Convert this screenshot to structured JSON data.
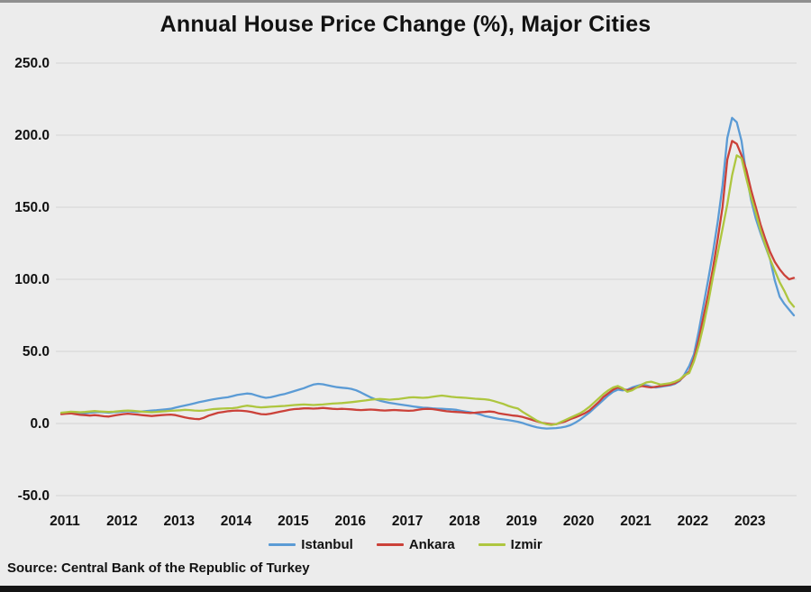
{
  "page": {
    "background_color": "#ececec",
    "top_bar_color": "#8f8f8f",
    "bottom_bar_color": "#141414"
  },
  "chart": {
    "title": "Annual House Price Change (%), Major Cities",
    "source": "Source: Central Bank of the Republic of Turkey",
    "legend": [
      {
        "label": "Istanbul",
        "color": "#5b9bd5"
      },
      {
        "label": "Ankara",
        "color": "#cb4139"
      },
      {
        "label": "Izmir",
        "color": "#aec63f"
      }
    ]
  },
  "chart_data": {
    "type": "line",
    "title": "Annual House Price Change (%), Major Cities",
    "source": "Source: Central Bank of the Republic of Turkey",
    "x_frequency": "monthly",
    "x_start": "2011-01",
    "x_end": "2023-11",
    "n_points": 155,
    "x_tick_labels": [
      "2011",
      "2012",
      "2013",
      "2014",
      "2015",
      "2016",
      "2017",
      "2018",
      "2019",
      "2020",
      "2021",
      "2022",
      "2023"
    ],
    "y_tick_values": [
      250,
      200,
      150,
      100,
      50,
      0,
      -50
    ],
    "y_tick_labels": [
      "250.0",
      "200.0",
      "150.0",
      "100.0",
      "50.0",
      "0.0",
      "-50.0"
    ],
    "ylim": [
      -50,
      250
    ],
    "grid": "horizontal",
    "gridline_color": "#d9d9d9",
    "legend_position": "bottom",
    "series": [
      {
        "name": "Istanbul",
        "color": "#5b9bd5",
        "values": [
          7.0,
          7.2,
          7.5,
          7.3,
          7.0,
          7.2,
          7.5,
          7.8,
          8.0,
          7.8,
          7.5,
          7.8,
          8.0,
          8.3,
          8.5,
          8.2,
          8.0,
          8.3,
          8.6,
          9.0,
          9.2,
          9.5,
          9.8,
          10.2,
          11.0,
          11.8,
          12.5,
          13.2,
          14.0,
          14.8,
          15.5,
          16.2,
          16.8,
          17.3,
          17.8,
          18.2,
          19.0,
          19.8,
          20.3,
          20.8,
          20.5,
          19.5,
          18.5,
          17.8,
          18.2,
          19.0,
          19.8,
          20.5,
          21.5,
          22.5,
          23.5,
          24.5,
          25.8,
          27.0,
          27.5,
          27.2,
          26.5,
          25.8,
          25.2,
          24.8,
          24.5,
          24.0,
          23.0,
          21.5,
          19.8,
          18.2,
          16.8,
          15.8,
          15.0,
          14.3,
          13.8,
          13.3,
          12.8,
          12.3,
          11.8,
          11.4,
          11.0,
          10.8,
          10.5,
          10.3,
          10.2,
          10.0,
          9.8,
          9.5,
          8.8,
          8.3,
          7.8,
          7.2,
          6.3,
          5.2,
          4.5,
          3.8,
          3.2,
          2.8,
          2.3,
          1.8,
          1.2,
          0.3,
          -0.8,
          -1.8,
          -2.6,
          -3.2,
          -3.5,
          -3.4,
          -3.2,
          -2.8,
          -2.2,
          -1.2,
          0.5,
          2.5,
          5.0,
          7.5,
          10.5,
          13.5,
          16.5,
          19.5,
          22.0,
          23.5,
          23.0,
          23.5,
          25.0,
          26.0,
          27.0,
          26.5,
          25.5,
          25.0,
          25.5,
          26.0,
          26.5,
          27.5,
          29.5,
          34.0,
          40.0,
          48.0,
          64.0,
          82.0,
          100.0,
          119.0,
          140.0,
          165.0,
          198.0,
          212.0,
          209.0,
          196.0,
          173.0,
          155.0,
          142.0,
          132.0,
          123.0,
          114.0,
          99.0,
          88.0,
          83.0,
          79.0,
          75.0
        ]
      },
      {
        "name": "Ankara",
        "color": "#cb4139",
        "values": [
          6.5,
          6.8,
          7.0,
          6.5,
          6.0,
          5.8,
          5.5,
          5.8,
          5.5,
          5.0,
          4.8,
          5.5,
          6.0,
          6.5,
          6.8,
          6.5,
          6.2,
          5.8,
          5.5,
          5.2,
          5.5,
          5.8,
          6.0,
          6.2,
          5.8,
          5.0,
          4.2,
          3.6,
          3.2,
          3.0,
          4.0,
          5.5,
          6.5,
          7.5,
          8.0,
          8.5,
          8.8,
          9.0,
          8.8,
          8.5,
          8.0,
          7.2,
          6.5,
          6.3,
          6.8,
          7.5,
          8.2,
          8.8,
          9.5,
          10.0,
          10.2,
          10.5,
          10.5,
          10.3,
          10.5,
          10.8,
          10.5,
          10.2,
          10.0,
          10.2,
          10.0,
          9.8,
          9.5,
          9.3,
          9.5,
          9.7,
          9.5,
          9.2,
          9.0,
          9.2,
          9.4,
          9.2,
          9.0,
          8.8,
          9.0,
          9.5,
          10.0,
          10.2,
          10.0,
          9.5,
          9.0,
          8.5,
          8.2,
          8.0,
          7.8,
          7.5,
          7.3,
          7.5,
          7.8,
          8.0,
          8.3,
          8.0,
          7.0,
          6.5,
          6.0,
          5.5,
          5.2,
          4.5,
          3.5,
          2.5,
          1.5,
          0.5,
          0.0,
          -0.5,
          -0.5,
          0.5,
          1.5,
          3.0,
          4.2,
          5.5,
          7.0,
          9.0,
          12.0,
          15.0,
          18.5,
          21.0,
          23.5,
          25.0,
          24.0,
          23.0,
          24.0,
          25.0,
          26.0,
          25.5,
          25.0,
          25.5,
          26.0,
          26.5,
          27.0,
          28.0,
          30.0,
          33.0,
          36.0,
          45.0,
          58.0,
          74.0,
          90.0,
          108.0,
          128.0,
          150.0,
          183.0,
          196.0,
          194.0,
          186.0,
          176.0,
          162.0,
          150.0,
          138.0,
          128.0,
          119.0,
          112.0,
          107.0,
          103.0,
          100.0,
          101.0
        ]
      },
      {
        "name": "Izmir",
        "color": "#aec63f",
        "values": [
          7.5,
          7.8,
          8.2,
          8.0,
          7.8,
          8.0,
          8.3,
          8.6,
          8.4,
          8.2,
          8.0,
          8.2,
          8.5,
          8.8,
          9.0,
          8.8,
          8.5,
          8.2,
          8.0,
          7.8,
          8.0,
          8.3,
          8.5,
          8.8,
          9.0,
          9.2,
          9.5,
          9.3,
          9.0,
          8.8,
          9.0,
          9.5,
          10.0,
          10.2,
          10.4,
          10.5,
          10.6,
          11.0,
          11.8,
          12.4,
          12.0,
          11.5,
          11.2,
          11.4,
          11.6,
          11.8,
          12.0,
          12.2,
          12.5,
          12.8,
          13.0,
          13.2,
          13.0,
          12.8,
          13.0,
          13.2,
          13.5,
          13.8,
          14.0,
          14.2,
          14.5,
          14.8,
          15.2,
          15.6,
          16.0,
          16.5,
          16.8,
          17.0,
          16.8,
          16.5,
          16.8,
          17.0,
          17.5,
          18.0,
          18.2,
          18.0,
          17.8,
          18.0,
          18.5,
          19.0,
          19.4,
          19.0,
          18.5,
          18.2,
          18.0,
          17.8,
          17.5,
          17.2,
          17.0,
          16.8,
          16.4,
          15.5,
          14.5,
          13.5,
          12.2,
          11.2,
          10.4,
          8.0,
          6.0,
          4.0,
          2.0,
          0.5,
          -0.5,
          -1.0,
          -0.5,
          1.0,
          2.5,
          4.0,
          5.5,
          7.0,
          9.0,
          11.5,
          14.5,
          17.5,
          20.5,
          23.0,
          25.0,
          26.0,
          24.5,
          22.0,
          23.0,
          25.0,
          27.0,
          28.5,
          29.0,
          28.0,
          27.0,
          27.5,
          28.0,
          29.0,
          30.5,
          33.5,
          35.0,
          43.0,
          54.0,
          68.0,
          84.0,
          102.0,
          118.0,
          135.0,
          152.0,
          172.0,
          186.0,
          184.0,
          170.0,
          157.0,
          146.0,
          134.0,
          124.0,
          114.0,
          106.0,
          98.0,
          92.0,
          85.0,
          81.0
        ]
      }
    ]
  }
}
